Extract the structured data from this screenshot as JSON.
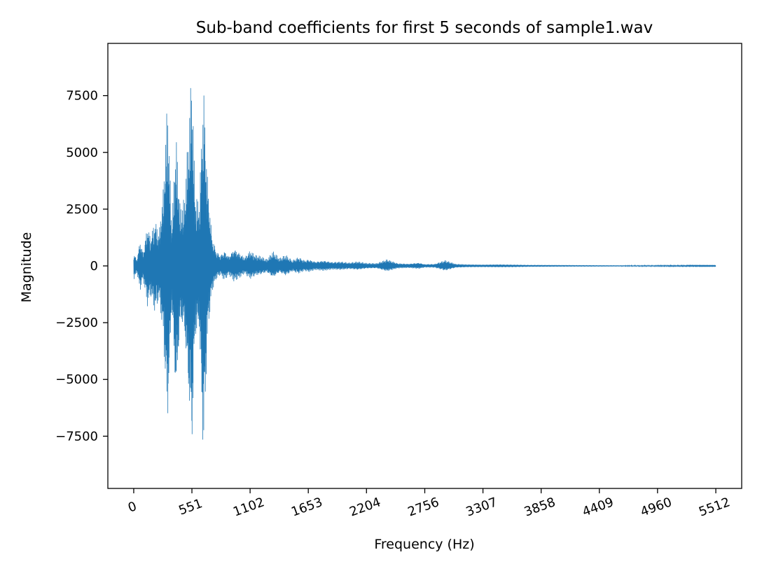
{
  "chart_data": {
    "type": "line",
    "title": "Sub-band coefficients for first 5 seconds of sample1.wav",
    "xlabel": "Frequency (Hz)",
    "ylabel": "Magnitude",
    "xlim": [
      -245,
      5757
    ],
    "ylim": [
      -9800,
      9800
    ],
    "xticks": [
      0,
      551,
      1102,
      1653,
      2204,
      2756,
      3307,
      3858,
      4409,
      4960,
      5512
    ],
    "xtick_labels": [
      "0",
      "551",
      "1102",
      "1653",
      "2204",
      "2756",
      "3307",
      "3858",
      "4409",
      "4960",
      "5512"
    ],
    "yticks": [
      -7500,
      -5000,
      -2500,
      0,
      2500,
      5000,
      7500
    ],
    "ytick_labels": [
      "−7500",
      "−5000",
      "−2500",
      "0",
      "2500",
      "5000",
      "7500"
    ],
    "grid": false,
    "series": [
      {
        "color": "#1f77b4",
        "x": [
          0,
          30,
          60,
          90,
          130,
          160,
          200,
          240,
          280,
          320,
          360,
          400,
          440,
          480,
          520,
          551,
          580,
          620,
          660,
          700,
          740,
          780,
          820,
          860,
          900,
          950,
          1000,
          1050,
          1102,
          1150,
          1200,
          1260,
          1320,
          1380,
          1440,
          1500,
          1560,
          1620,
          1653,
          1720,
          1800,
          1880,
          1960,
          2040,
          2120,
          2204,
          2300,
          2400,
          2500,
          2600,
          2700,
          2756,
          2850,
          2950,
          3050,
          3150,
          3307,
          3450,
          3600,
          3750,
          3858,
          4000,
          4200,
          4409,
          4600,
          4800,
          4960,
          5100,
          5300,
          5512
        ],
        "upper": [
          600,
          300,
          1200,
          600,
          1900,
          1300,
          2100,
          1500,
          3500,
          7600,
          1800,
          5900,
          2600,
          3000,
          6200,
          9000,
          3300,
          2800,
          8300,
          3900,
          1400,
          700,
          500,
          700,
          450,
          800,
          600,
          400,
          700,
          500,
          450,
          300,
          650,
          350,
          500,
          250,
          400,
          250,
          300,
          200,
          250,
          180,
          200,
          150,
          200,
          130,
          120,
          300,
          120,
          100,
          150,
          80,
          90,
          260,
          90,
          70,
          60,
          70,
          60,
          45,
          45,
          40,
          35,
          30,
          28,
          25,
          22,
          20,
          18,
          15
        ],
        "lower": [
          -650,
          -300,
          -1100,
          -600,
          -1800,
          -1300,
          -2100,
          -1500,
          -3300,
          -7400,
          -1800,
          -6300,
          -2600,
          -3000,
          -6000,
          -8500,
          -3300,
          -2800,
          -8900,
          -3100,
          -1200,
          -600,
          -400,
          -650,
          -400,
          -700,
          -550,
          -350,
          -600,
          -450,
          -400,
          -300,
          -550,
          -300,
          -450,
          -250,
          -350,
          -220,
          -280,
          -180,
          -220,
          -160,
          -180,
          -140,
          -180,
          -120,
          -110,
          -250,
          -110,
          -90,
          -130,
          -70,
          -80,
          -220,
          -80,
          -60,
          -55,
          -60,
          -55,
          -40,
          -40,
          -35,
          -30,
          -28,
          -25,
          -22,
          -20,
          -18,
          -16,
          -14
        ]
      }
    ]
  }
}
